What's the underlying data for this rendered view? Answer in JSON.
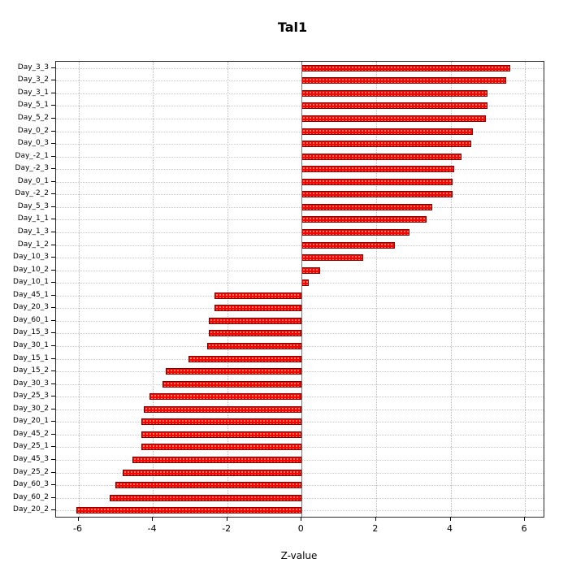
{
  "title": "Tal1",
  "chart_data": {
    "type": "bar",
    "orientation": "horizontal",
    "title": "Tal1",
    "xlabel": "Z-value",
    "ylabel": "",
    "xlim": [
      -6.6,
      6.5
    ],
    "xticks": [
      -6,
      -4,
      -2,
      0,
      2,
      4,
      6
    ],
    "grid": true,
    "legend": "none",
    "bar_color": "#ff0000",
    "bar_border_color": "#7a0000",
    "zero_line_color": "#00cc00",
    "categories": [
      "Day_3_3",
      "Day_3_2",
      "Day_3_1",
      "Day_5_1",
      "Day_5_2",
      "Day_0_2",
      "Day_0_3",
      "Day_-2_1",
      "Day_-2_3",
      "Day_0_1",
      "Day_-2_2",
      "Day_5_3",
      "Day_1_1",
      "Day_1_3",
      "Day_1_2",
      "Day_10_3",
      "Day_10_2",
      "Day_10_1",
      "Day_45_1",
      "Day_20_3",
      "Day_60_1",
      "Day_15_3",
      "Day_30_1",
      "Day_15_1",
      "Day_15_2",
      "Day_30_3",
      "Day_25_3",
      "Day_30_2",
      "Day_20_1",
      "Day_45_2",
      "Day_25_1",
      "Day_45_3",
      "Day_25_2",
      "Day_60_3",
      "Day_60_2",
      "Day_20_2"
    ],
    "values": [
      5.6,
      5.5,
      5.0,
      5.0,
      4.95,
      4.6,
      4.55,
      4.3,
      4.1,
      4.05,
      4.05,
      3.5,
      3.35,
      2.9,
      2.5,
      1.65,
      0.5,
      0.2,
      -2.35,
      -2.35,
      -2.5,
      -2.5,
      -2.55,
      -3.05,
      -3.65,
      -3.75,
      -4.1,
      -4.25,
      -4.3,
      -4.3,
      -4.3,
      -4.55,
      -4.8,
      -5.0,
      -5.15,
      -6.05
    ]
  }
}
